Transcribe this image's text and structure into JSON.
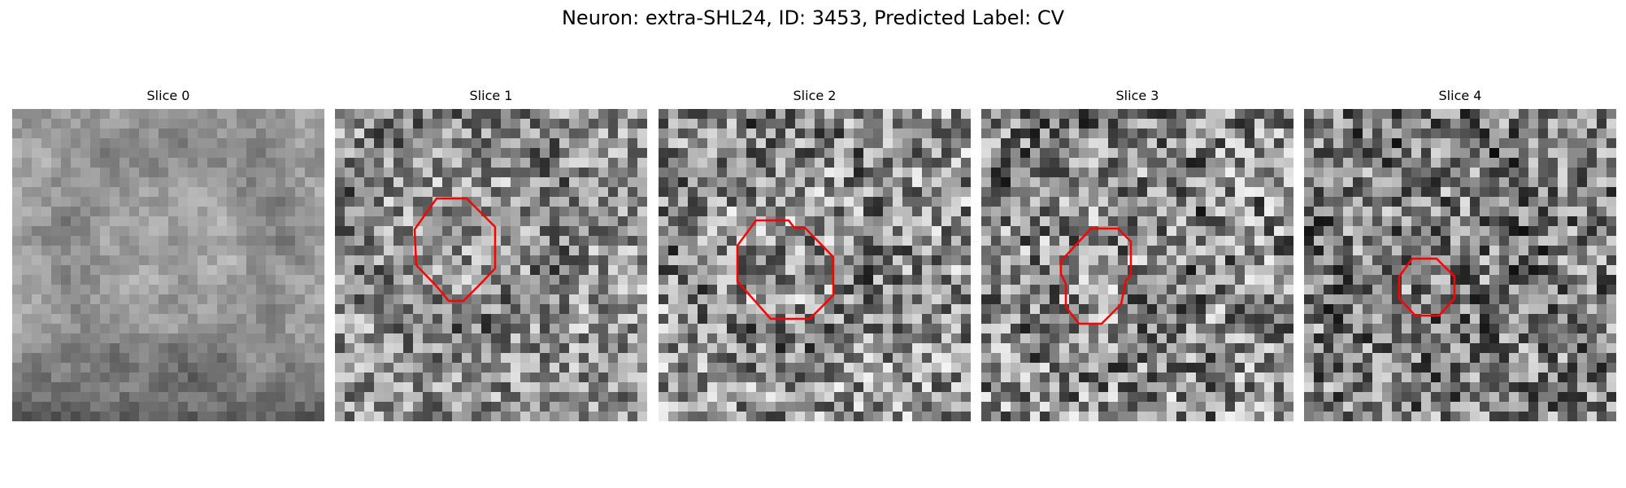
{
  "figure": {
    "title": "Neuron: extra-SHL24, ID: 3453, Predicted Label: CV",
    "contour_color": "#ff0000"
  },
  "panels": [
    {
      "title": "Slice 0"
    },
    {
      "title": "Slice 1"
    },
    {
      "title": "Slice 2"
    },
    {
      "title": "Slice 3"
    },
    {
      "title": "Slice 4"
    }
  ]
}
